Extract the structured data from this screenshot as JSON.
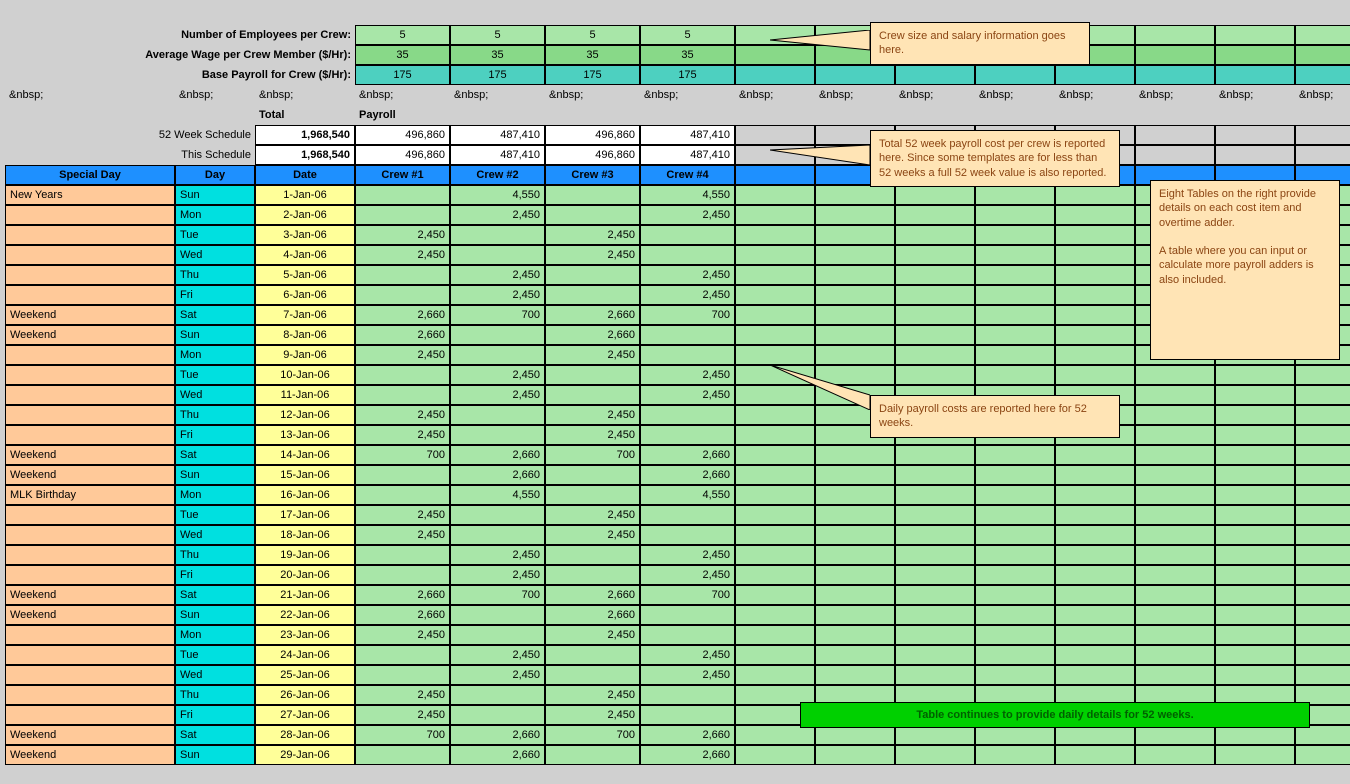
{
  "labels": {
    "num_employees": "Number of Employees per Crew:",
    "avg_wage": "Average Wage per Crew Member ($/Hr):",
    "base_payroll": "Base Payroll for Crew ($/Hr):",
    "total": "Total",
    "payroll": "Payroll",
    "week52": "52 Week Schedule",
    "this_sched": "This Schedule"
  },
  "crew_inputs": {
    "employees": [
      "5",
      "5",
      "5",
      "5"
    ],
    "wage": [
      "35",
      "35",
      "35",
      "35"
    ],
    "base": [
      "175",
      "175",
      "175",
      "175"
    ]
  },
  "totals": {
    "week52_total": "1,968,540",
    "this_total": "1,968,540",
    "week52_crews": [
      "496,860",
      "487,410",
      "496,860",
      "487,410"
    ],
    "this_crews": [
      "496,860",
      "487,410",
      "496,860",
      "487,410"
    ]
  },
  "headers": [
    "Special Day",
    "Day",
    "Date",
    "Crew #1",
    "Crew #2",
    "Crew #3",
    "Crew #4"
  ],
  "rows": [
    {
      "special": "New Years",
      "day": "Sun",
      "date": "1-Jan-06",
      "v": [
        "",
        "4,550",
        "",
        "4,550"
      ]
    },
    {
      "special": "",
      "day": "Mon",
      "date": "2-Jan-06",
      "v": [
        "",
        "2,450",
        "",
        "2,450"
      ]
    },
    {
      "special": "",
      "day": "Tue",
      "date": "3-Jan-06",
      "v": [
        "2,450",
        "",
        "2,450",
        ""
      ]
    },
    {
      "special": "",
      "day": "Wed",
      "date": "4-Jan-06",
      "v": [
        "2,450",
        "",
        "2,450",
        ""
      ]
    },
    {
      "special": "",
      "day": "Thu",
      "date": "5-Jan-06",
      "v": [
        "",
        "2,450",
        "",
        "2,450"
      ]
    },
    {
      "special": "",
      "day": "Fri",
      "date": "6-Jan-06",
      "v": [
        "",
        "2,450",
        "",
        "2,450"
      ]
    },
    {
      "special": "Weekend",
      "day": "Sat",
      "date": "7-Jan-06",
      "v": [
        "2,660",
        "700",
        "2,660",
        "700"
      ]
    },
    {
      "special": "Weekend",
      "day": "Sun",
      "date": "8-Jan-06",
      "v": [
        "2,660",
        "",
        "2,660",
        ""
      ]
    },
    {
      "special": "",
      "day": "Mon",
      "date": "9-Jan-06",
      "v": [
        "2,450",
        "",
        "2,450",
        ""
      ]
    },
    {
      "special": "",
      "day": "Tue",
      "date": "10-Jan-06",
      "v": [
        "",
        "2,450",
        "",
        "2,450"
      ]
    },
    {
      "special": "",
      "day": "Wed",
      "date": "11-Jan-06",
      "v": [
        "",
        "2,450",
        "",
        "2,450"
      ]
    },
    {
      "special": "",
      "day": "Thu",
      "date": "12-Jan-06",
      "v": [
        "2,450",
        "",
        "2,450",
        ""
      ]
    },
    {
      "special": "",
      "day": "Fri",
      "date": "13-Jan-06",
      "v": [
        "2,450",
        "",
        "2,450",
        ""
      ]
    },
    {
      "special": "Weekend",
      "day": "Sat",
      "date": "14-Jan-06",
      "v": [
        "700",
        "2,660",
        "700",
        "2,660"
      ]
    },
    {
      "special": "Weekend",
      "day": "Sun",
      "date": "15-Jan-06",
      "v": [
        "",
        "2,660",
        "",
        "2,660"
      ]
    },
    {
      "special": "MLK Birthday",
      "day": "Mon",
      "date": "16-Jan-06",
      "v": [
        "",
        "4,550",
        "",
        "4,550"
      ]
    },
    {
      "special": "",
      "day": "Tue",
      "date": "17-Jan-06",
      "v": [
        "2,450",
        "",
        "2,450",
        ""
      ]
    },
    {
      "special": "",
      "day": "Wed",
      "date": "18-Jan-06",
      "v": [
        "2,450",
        "",
        "2,450",
        ""
      ]
    },
    {
      "special": "",
      "day": "Thu",
      "date": "19-Jan-06",
      "v": [
        "",
        "2,450",
        "",
        "2,450"
      ]
    },
    {
      "special": "",
      "day": "Fri",
      "date": "20-Jan-06",
      "v": [
        "",
        "2,450",
        "",
        "2,450"
      ]
    },
    {
      "special": "Weekend",
      "day": "Sat",
      "date": "21-Jan-06",
      "v": [
        "2,660",
        "700",
        "2,660",
        "700"
      ]
    },
    {
      "special": "Weekend",
      "day": "Sun",
      "date": "22-Jan-06",
      "v": [
        "2,660",
        "",
        "2,660",
        ""
      ]
    },
    {
      "special": "",
      "day": "Mon",
      "date": "23-Jan-06",
      "v": [
        "2,450",
        "",
        "2,450",
        ""
      ]
    },
    {
      "special": "",
      "day": "Tue",
      "date": "24-Jan-06",
      "v": [
        "",
        "2,450",
        "",
        "2,450"
      ]
    },
    {
      "special": "",
      "day": "Wed",
      "date": "25-Jan-06",
      "v": [
        "",
        "2,450",
        "",
        "2,450"
      ]
    },
    {
      "special": "",
      "day": "Thu",
      "date": "26-Jan-06",
      "v": [
        "2,450",
        "",
        "2,450",
        ""
      ]
    },
    {
      "special": "",
      "day": "Fri",
      "date": "27-Jan-06",
      "v": [
        "2,450",
        "",
        "2,450",
        ""
      ]
    },
    {
      "special": "Weekend",
      "day": "Sat",
      "date": "28-Jan-06",
      "v": [
        "700",
        "2,660",
        "700",
        "2,660"
      ]
    },
    {
      "special": "Weekend",
      "day": "Sun",
      "date": "29-Jan-06",
      "v": [
        "",
        "2,660",
        "",
        "2,660"
      ]
    }
  ],
  "callouts": {
    "c1": "Crew size and salary information goes here.",
    "c2": "Total 52 week payroll cost per crew is reported here. Since some templates are for less than 52 weeks a full 52 week value is also reported.",
    "c3": "Eight Tables on the right provide details on each cost item and overtime adder.",
    "c4": "A table where you can input or calculate more payroll adders is also included.",
    "c5": "Daily payroll costs are reported here for 52 weeks.",
    "c6": "Table continues to provide daily details for 52 weeks."
  },
  "colors": {
    "green_light": "#a8e6a8",
    "green_mid": "#88d988",
    "teal": "#4dd0c0",
    "cyan": "#00e0e0",
    "yellow": "#ffff99",
    "peach": "#ffc999",
    "header": "#1e90ff",
    "callout_bg": "#ffe4b5",
    "callout_green": "#00d000"
  }
}
